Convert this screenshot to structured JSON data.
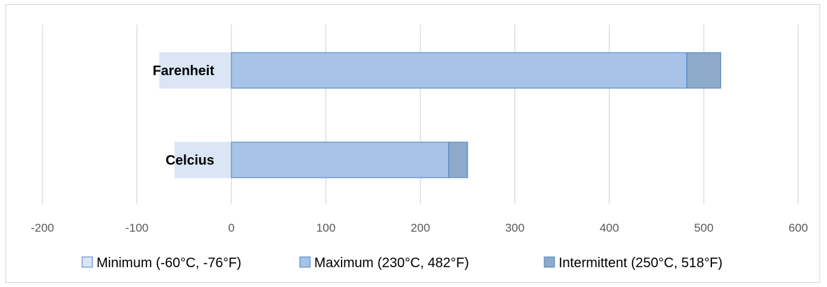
{
  "chart_data": {
    "type": "bar",
    "orientation": "horizontal",
    "stacked": true,
    "title": "",
    "xlabel": "",
    "ylabel": "",
    "categories": [
      "Farenheit",
      "Celcius"
    ],
    "series": [
      {
        "name": "Minimum (-60°C, -76°F)",
        "values": [
          -76,
          -60
        ],
        "color": "#dae6f5"
      },
      {
        "name": "Maximum (230°C, 482°F)",
        "values": [
          482,
          230
        ],
        "color": "#a7c4e8"
      },
      {
        "name": "Intermittent (250°C, 518°F)",
        "values": [
          36,
          20
        ],
        "color": "#8eaacb"
      }
    ],
    "xlim": [
      -200,
      600
    ],
    "xticks": [
      "-200",
      "-100",
      "0",
      "100",
      "200",
      "300",
      "400",
      "500",
      "600"
    ],
    "grid": true,
    "legend_position": "bottom",
    "border_color": "#4a7ebb"
  }
}
